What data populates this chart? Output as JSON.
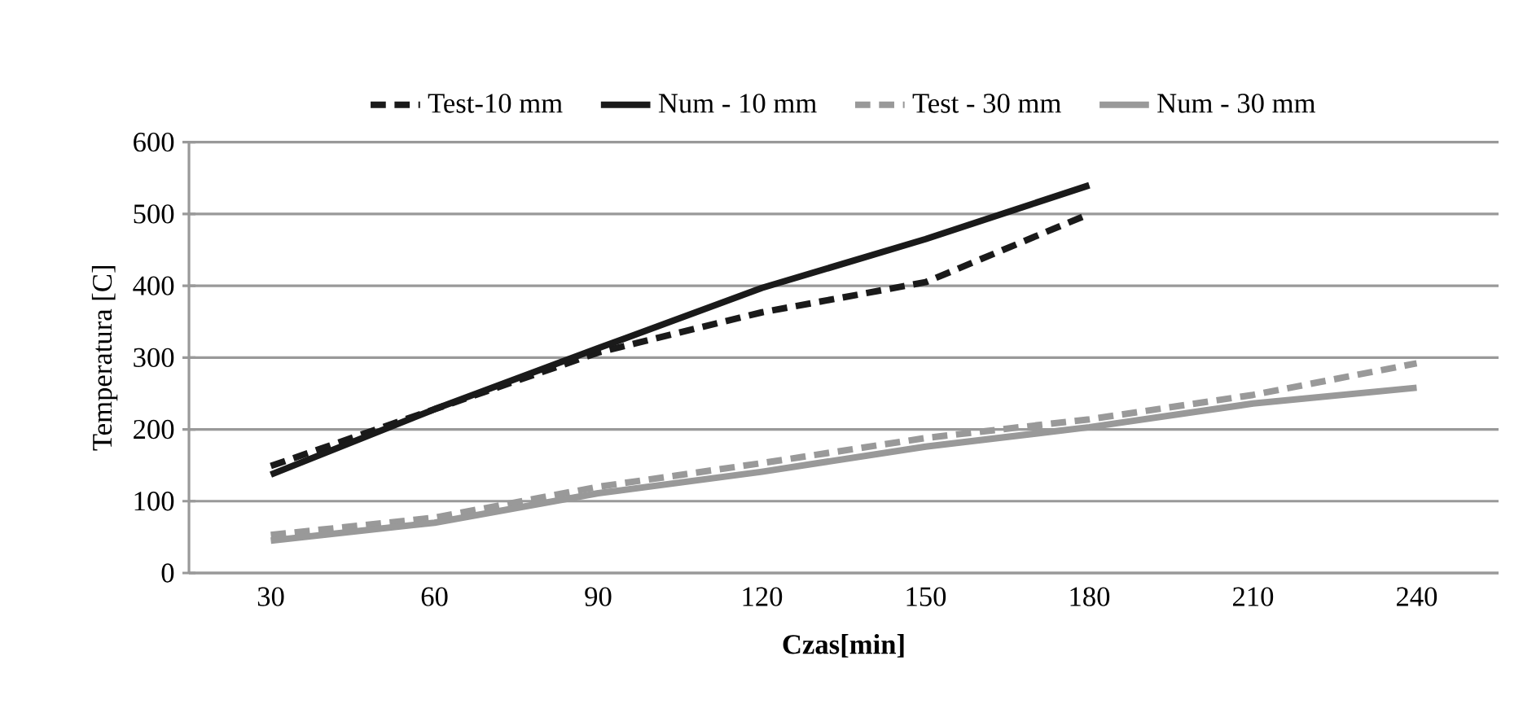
{
  "chart_data": {
    "type": "line",
    "xlabel": "Czas[min]",
    "ylabel": "Temperatura [C]",
    "categories": [
      "30",
      "60",
      "90",
      "120",
      "150",
      "180",
      "210",
      "240"
    ],
    "series": [
      {
        "name": "Test-10 mm",
        "color": "#1a1a1a",
        "line_style": "dashed",
        "values": [
          149,
          228,
          307,
          363,
          405,
          500,
          null,
          null
        ]
      },
      {
        "name": "Num - 10 mm",
        "color": "#1a1a1a",
        "line_style": "solid",
        "values": [
          137,
          228,
          313,
          397,
          465,
          540,
          null,
          null
        ]
      },
      {
        "name": "Test - 30 mm",
        "color": "#999999",
        "line_style": "dashed",
        "values": [
          53,
          77,
          120,
          153,
          188,
          214,
          248,
          292
        ]
      },
      {
        "name": "Num - 30 mm",
        "color": "#999999",
        "line_style": "solid",
        "values": [
          45,
          70,
          111,
          141,
          176,
          203,
          236,
          258
        ]
      }
    ],
    "ylim": [
      0,
      600
    ],
    "yticks": [
      0,
      100,
      200,
      300,
      400,
      500,
      600
    ],
    "grid": "y",
    "legend": "top",
    "marker": "none"
  }
}
